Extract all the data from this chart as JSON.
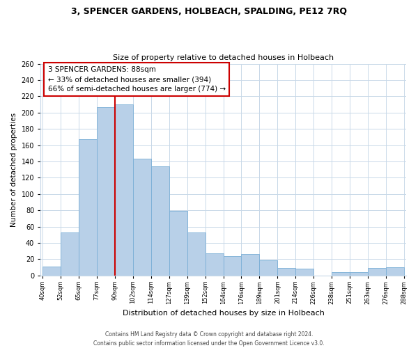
{
  "title": "3, SPENCER GARDENS, HOLBEACH, SPALDING, PE12 7RQ",
  "subtitle": "Size of property relative to detached houses in Holbeach",
  "xlabel": "Distribution of detached houses by size in Holbeach",
  "ylabel": "Number of detached properties",
  "bar_color": "#b8d0e8",
  "bar_edge_color": "#7aaed6",
  "categories": [
    "40sqm",
    "52sqm",
    "65sqm",
    "77sqm",
    "90sqm",
    "102sqm",
    "114sqm",
    "127sqm",
    "139sqm",
    "152sqm",
    "164sqm",
    "176sqm",
    "189sqm",
    "201sqm",
    "214sqm",
    "226sqm",
    "238sqm",
    "251sqm",
    "263sqm",
    "276sqm",
    "288sqm"
  ],
  "bar_values": [
    11,
    53,
    167,
    207,
    210,
    143,
    134,
    79,
    53,
    27,
    24,
    26,
    19,
    9,
    8,
    0,
    4,
    4,
    9,
    10
  ],
  "ylim": [
    0,
    260
  ],
  "yticks": [
    0,
    20,
    40,
    60,
    80,
    100,
    120,
    140,
    160,
    180,
    200,
    220,
    240,
    260
  ],
  "annotation_title": "3 SPENCER GARDENS: 88sqm",
  "annotation_line1": "← 33% of detached houses are smaller (394)",
  "annotation_line2": "66% of semi-detached houses are larger (774) →",
  "vline_position": 4,
  "vline_color": "#cc0000",
  "footer1": "Contains HM Land Registry data © Crown copyright and database right 2024.",
  "footer2": "Contains public sector information licensed under the Open Government Licence v3.0.",
  "background_color": "#ffffff",
  "grid_color": "#c8d8e8",
  "title_fontsize": 9,
  "subtitle_fontsize": 8
}
